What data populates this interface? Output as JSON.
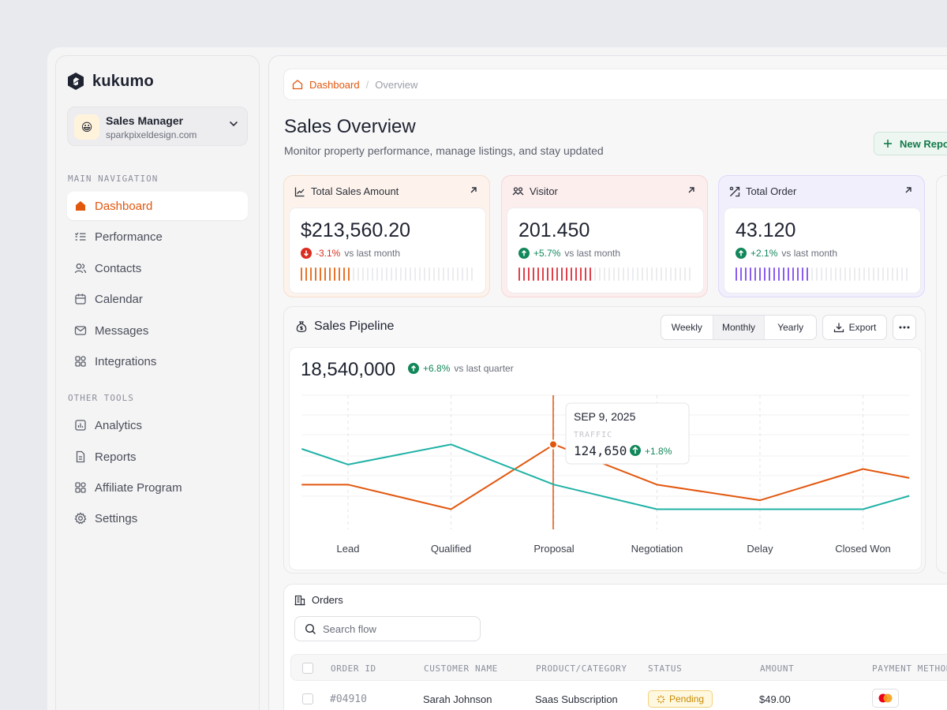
{
  "app": {
    "name": "kukumo"
  },
  "account": {
    "role": "Sales Manager",
    "email": "sparkpixeldesign.com",
    "avatar_emoji": "😀"
  },
  "sidebar": {
    "main_label": "MAIN NAVIGATION",
    "main_items": [
      {
        "label": "Dashboard",
        "icon": "home-icon",
        "active": true
      },
      {
        "label": "Performance",
        "icon": "list-check-icon"
      },
      {
        "label": "Contacts",
        "icon": "users-icon"
      },
      {
        "label": "Calendar",
        "icon": "calendar-icon"
      },
      {
        "label": "Messages",
        "icon": "mail-icon"
      },
      {
        "label": "Integrations",
        "icon": "grid-icon"
      }
    ],
    "tools_label": "OTHER TOOLS",
    "tool_items": [
      {
        "label": "Analytics",
        "icon": "chart-icon"
      },
      {
        "label": "Reports",
        "icon": "document-icon"
      },
      {
        "label": "Affiliate Program",
        "icon": "grid-icon"
      },
      {
        "label": "Settings",
        "icon": "gear-icon"
      }
    ]
  },
  "breadcrumb": {
    "root": "Dashboard",
    "separator": "/",
    "current": "Overview"
  },
  "header": {
    "title": "Sales Overview",
    "subtitle": "Monitor property performance, manage listings, and stay updated",
    "new_report_label": "New Report"
  },
  "stats": [
    {
      "title": "Total Sales Amount",
      "value": "$213,560.20",
      "delta": "-3.1%",
      "direction": "down",
      "compare": "vs last month",
      "accent": "#e8732a",
      "bg": "#fdf3ec",
      "border": "#f6dfcd",
      "fill": 0.31
    },
    {
      "title": "Visitor",
      "value": "201.450",
      "delta": "+5.7%",
      "direction": "up",
      "compare": "vs last month",
      "accent": "#e0404a",
      "bg": "#fdeeee",
      "border": "#f5d6d6",
      "fill": 0.42
    },
    {
      "title": "Total Order",
      "value": "43.120",
      "delta": "+2.1%",
      "direction": "up",
      "compare": "vs last month",
      "accent": "#8a5cf0",
      "bg": "#f2effd",
      "border": "#dfd8f7",
      "fill": 0.42
    }
  ],
  "pipeline": {
    "title": "Sales Pipeline",
    "periods": [
      "Weekly",
      "Monthly",
      "Yearly"
    ],
    "active_period": "Monthly",
    "export_label": "Export",
    "total": "18,540,000",
    "delta": "+6.8%",
    "compare": "vs last quarter",
    "tooltip": {
      "date": "SEP 9, 2025",
      "label": "TRAFFIC",
      "value": "124,650",
      "delta": "+1.8%"
    }
  },
  "chart_data": {
    "type": "line",
    "categories": [
      "Lead",
      "Qualified",
      "Proposal",
      "Negotiation",
      "Delay",
      "Closed Won"
    ],
    "series": [
      {
        "color": "#e2570e",
        "values": [
          60,
          60,
          49,
          78,
          60,
          53,
          67,
          63
        ]
      },
      {
        "color": "#20b2a6",
        "values": [
          76,
          69,
          78,
          60,
          49,
          49,
          49,
          55
        ]
      }
    ],
    "x": [
      -0.45,
      0,
      1,
      2,
      3,
      4,
      5,
      5.45
    ],
    "highlight": {
      "category": "Proposal",
      "value": 124650
    },
    "ylim": [
      40,
      100
    ],
    "grid": true
  },
  "orders": {
    "title": "Orders",
    "search_placeholder": "Search flow",
    "columns": [
      "ORDER ID",
      "CUSTOMER NAME",
      "PRODUCT/CATEGORY",
      "STATUS",
      "AMOUNT",
      "PAYMENT METHOD"
    ],
    "rows": [
      {
        "id": "#04910",
        "customer": "Sarah Johnson",
        "product": "Saas Subscription",
        "status": "Pending",
        "amount": "$49.00",
        "payment": "mastercard-icon"
      }
    ]
  }
}
